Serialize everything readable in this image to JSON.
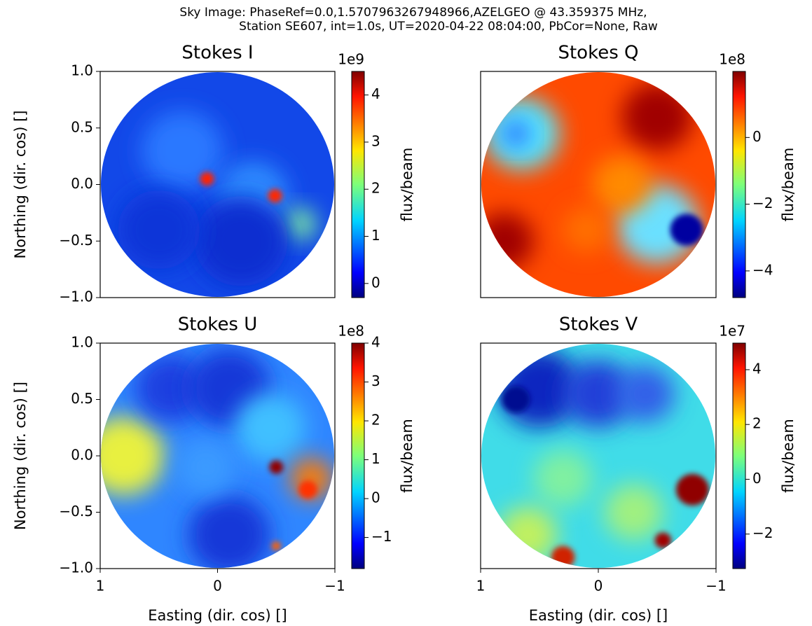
{
  "title": [
    "Sky Image: PhaseRef=0.0,1.5707963267948966,AZELGEO @ 43.359375 MHz,",
    "Station SE607, int=1.0s, UT=2020-04-22 08:04:00, PbCor=None, Raw"
  ],
  "chart_data": [
    {
      "type": "heatmap",
      "title": "Stokes I",
      "ylabel": "Northing (dir. cos) []",
      "xlim": [
        1,
        -1
      ],
      "ylim": [
        -1,
        1
      ],
      "yticks": [
        {
          "value": 1,
          "label": "1.0"
        },
        0.5,
        {
          "value": 0,
          "label": "0.0"
        },
        {
          "value": -0.5,
          "label": "−0.5"
        },
        {
          "value": -1,
          "label": "−1.0"
        }
      ],
      "colormap": "jet",
      "colorbar": {
        "label": "flux/beam",
        "offset": "1e9",
        "lim": [
          -0.3,
          4.5
        ],
        "ticks": [
          0,
          1,
          2,
          3,
          4
        ]
      }
    },
    {
      "type": "heatmap",
      "title": "Stokes Q",
      "xlim": [
        1,
        -1
      ],
      "ylim": [
        -1,
        1
      ],
      "colormap": "jet",
      "colorbar": {
        "label": "flux/beam",
        "offset": "1e8",
        "lim": [
          -4.8,
          1.98
        ],
        "ticks": [
          {
            "value": -4,
            "label": "−4"
          },
          {
            "value": -2,
            "label": "−2"
          },
          0
        ]
      }
    },
    {
      "type": "heatmap",
      "title": "Stokes U",
      "xlabel": "Easting (dir. cos) []",
      "ylabel": "Northing (dir. cos) []",
      "xlim": [
        1,
        -1
      ],
      "ylim": [
        -1,
        1
      ],
      "xticks": [
        1,
        0,
        {
          "value": -1,
          "label": "−1"
        }
      ],
      "yticks": [
        {
          "value": 1,
          "label": "1.0"
        },
        0.5,
        {
          "value": 0,
          "label": "0.0"
        },
        {
          "value": -0.5,
          "label": "−0.5"
        },
        {
          "value": -1,
          "label": "−1.0"
        }
      ],
      "colormap": "jet",
      "colorbar": {
        "label": "flux/beam",
        "offset": "1e8",
        "lim": [
          -1.8,
          4.0
        ],
        "ticks": [
          {
            "value": -1,
            "label": "−1"
          },
          0,
          1,
          2,
          3,
          4
        ]
      }
    },
    {
      "type": "heatmap",
      "title": "Stokes V",
      "xlabel": "Easting (dir. cos) []",
      "xlim": [
        1,
        -1
      ],
      "ylim": [
        -1,
        1
      ],
      "xticks": [
        1,
        0,
        {
          "value": -1,
          "label": "−1"
        }
      ],
      "colormap": "jet",
      "colorbar": {
        "label": "flux/beam",
        "offset": "1e7",
        "lim": [
          -3.26,
          4.97
        ],
        "ticks": [
          {
            "value": -2,
            "label": "−2"
          },
          0,
          2,
          4
        ]
      }
    }
  ]
}
